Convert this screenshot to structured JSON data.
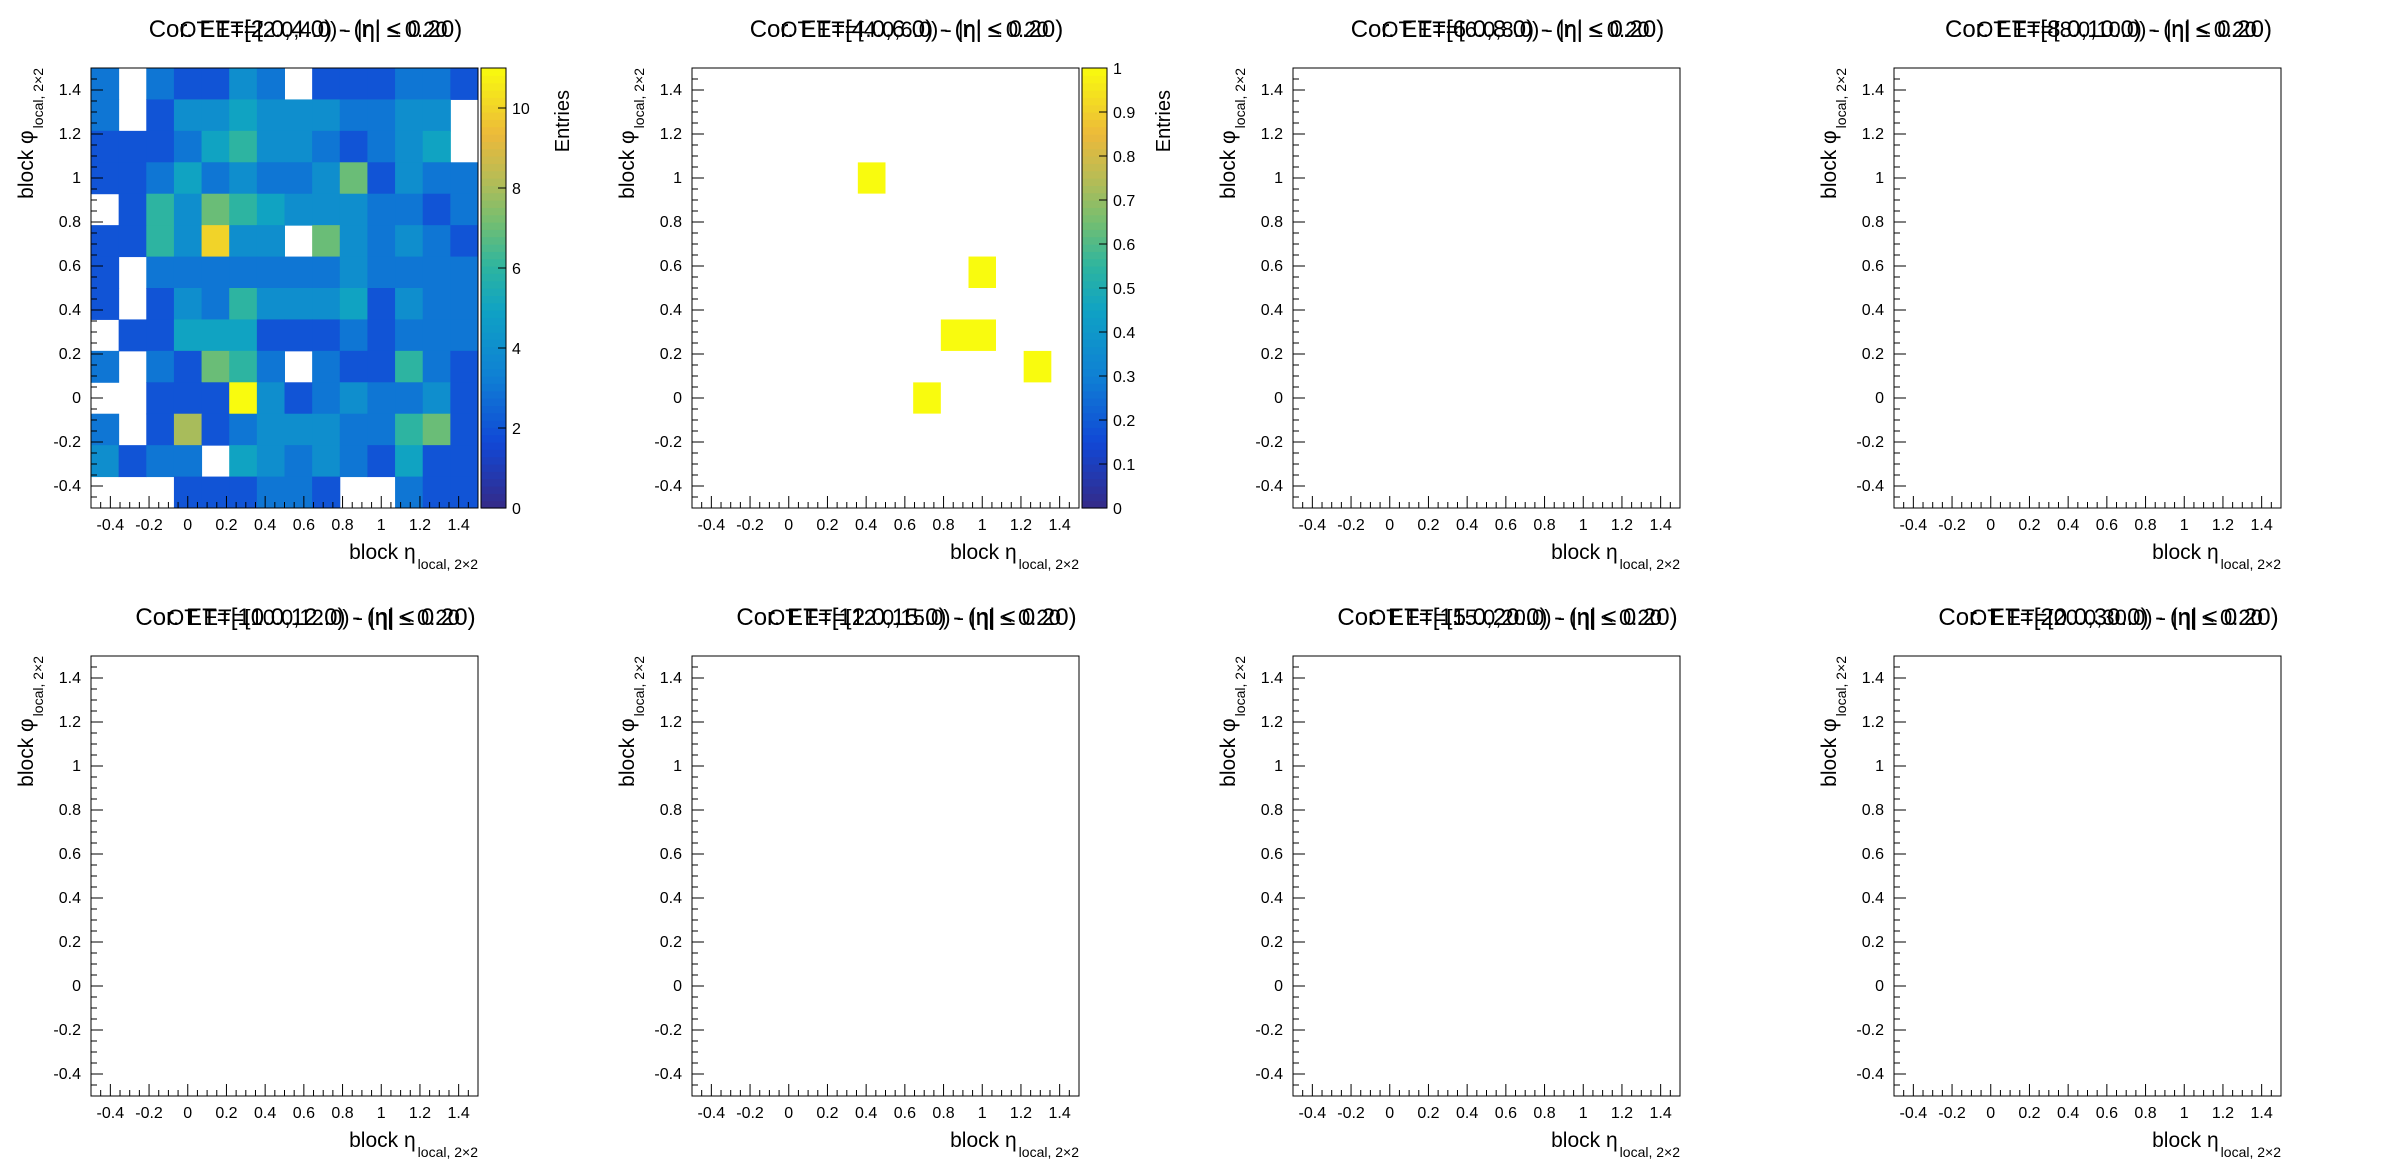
{
  "panels": [
    {
      "title_a": "Cor. ET=[2.0,4.0) - (η| ≤ 0.20)",
      "title_b": "OT ET=[2.0,4.0) - |η| ≤ 0.20",
      "xlabel": "block η",
      "xlabel_sub": "local, 2×2",
      "ylabel": "block φ",
      "ylabel_sub": "local, 2×2",
      "has_colorbar": true,
      "colorbar_max": 11,
      "colorbar_ticks": [
        "0",
        "2",
        "4",
        "6",
        "8",
        "10"
      ],
      "colorbar_title": "Entries"
    },
    {
      "title_a": "Cor. ET=[4.0,6.0) - (η| ≤ 0.20)",
      "title_b": "OT ET=[4.0,6.0) - |η| ≤ 0.20",
      "xlabel": "block η",
      "xlabel_sub": "local, 2×2",
      "ylabel": "block φ",
      "ylabel_sub": "local, 2×2",
      "has_colorbar": true,
      "colorbar_max": 1,
      "colorbar_ticks": [
        "0",
        "0.1",
        "0.2",
        "0.3",
        "0.4",
        "0.5",
        "0.6",
        "0.7",
        "0.8",
        "0.9",
        "1"
      ],
      "colorbar_title": "Entries"
    },
    {
      "title_a": "Cor. ET=[6.0,8.0) - (η| ≤ 0.20)",
      "title_b": "OT ET=[6.0,8.0) - |η| ≤ 0.20",
      "xlabel": "block η",
      "xlabel_sub": "local, 2×2",
      "ylabel": "block φ",
      "ylabel_sub": "local, 2×2",
      "has_colorbar": false
    },
    {
      "title_a": "Cor. ET=[8.0,10.0) - (η| ≤ 0.20)",
      "title_b": "OT ET=[8.0,10.0) - |η| ≤ 0.20",
      "xlabel": "block η",
      "xlabel_sub": "local, 2×2",
      "ylabel": "block φ",
      "ylabel_sub": "local, 2×2",
      "has_colorbar": false
    },
    {
      "title_a": "Cor. ET=[10.0,12.0) - (η| ≤ 0.20)",
      "title_b": "OT ET=[10.0,12.0) - |η| ≤ 0.20",
      "xlabel": "block η",
      "xlabel_sub": "local, 2×2",
      "ylabel": "block φ",
      "ylabel_sub": "local, 2×2",
      "has_colorbar": false
    },
    {
      "title_a": "Cor. ET=[12.0,15.0) - (η| ≤ 0.20)",
      "title_b": "OT ET=[12.0,15.0) - |η| ≤ 0.20",
      "xlabel": "block η",
      "xlabel_sub": "local, 2×2",
      "ylabel": "block φ",
      "ylabel_sub": "local, 2×2",
      "has_colorbar": false
    },
    {
      "title_a": "Cor. ET=[15.0,20.0) - (η| ≤ 0.20)",
      "title_b": "OT ET=[15.0,20.0) - |η| ≤ 0.20",
      "xlabel": "block η",
      "xlabel_sub": "local, 2×2",
      "ylabel": "block φ",
      "ylabel_sub": "local, 2×2",
      "has_colorbar": false
    },
    {
      "title_a": "Cor. ET=[20.0,30.0) - (η| ≤ 0.20)",
      "title_b": "OT ET=[20.0,30.0) - |η| ≤ 0.20",
      "xlabel": "block η",
      "xlabel_sub": "local, 2×2",
      "ylabel": "block φ",
      "ylabel_sub": "local, 2×2",
      "has_colorbar": false
    }
  ],
  "chart_data": [
    {
      "type": "heatmap",
      "xlim": [
        -0.5,
        1.5
      ],
      "ylim": [
        -0.5,
        1.5
      ],
      "nbins_x": 14,
      "nbins_y": 14,
      "x_ticks": [
        "-0.4",
        "-0.2",
        "0",
        "0.2",
        "0.4",
        "0.6",
        "0.8",
        "1",
        "1.2",
        "1.4"
      ],
      "y_ticks": [
        "-0.4",
        "-0.2",
        "0",
        "0.2",
        "0.4",
        "0.6",
        "0.8",
        "1",
        "1.2",
        "1.4"
      ],
      "zlim": [
        0,
        11
      ],
      "colorbar_label": "Entries",
      "values": [
        [
          3,
          0,
          3,
          2,
          2,
          4,
          3,
          0,
          2,
          2,
          2,
          3,
          3,
          2
        ],
        [
          3,
          0,
          2,
          4,
          4,
          5,
          4,
          4,
          4,
          3,
          3,
          4,
          4,
          0
        ],
        [
          2,
          2,
          2,
          3,
          5,
          6,
          4,
          4,
          3,
          2,
          3,
          4,
          5,
          0
        ],
        [
          2,
          2,
          3,
          5,
          3,
          4,
          3,
          3,
          4,
          7,
          2,
          4,
          3,
          3
        ],
        [
          0,
          2,
          6,
          4,
          7,
          6,
          5,
          4,
          4,
          4,
          3,
          3,
          2,
          3
        ],
        [
          2,
          2,
          6,
          4,
          10,
          4,
          4,
          0,
          7,
          4,
          3,
          4,
          3,
          2
        ],
        [
          2,
          0,
          3,
          3,
          3,
          3,
          3,
          3,
          3,
          4,
          3,
          3,
          3,
          3
        ],
        [
          2,
          0,
          2,
          4,
          3,
          6,
          4,
          4,
          4,
          5,
          2,
          4,
          3,
          3
        ],
        [
          0,
          2,
          2,
          5,
          5,
          5,
          2,
          2,
          2,
          3,
          2,
          3,
          3,
          3
        ],
        [
          3,
          0,
          3,
          2,
          7,
          6,
          3,
          0,
          3,
          2,
          2,
          6,
          3,
          2
        ],
        [
          0,
          0,
          2,
          2,
          2,
          11,
          4,
          2,
          3,
          4,
          3,
          3,
          4,
          2
        ],
        [
          3,
          0,
          2,
          8,
          2,
          3,
          4,
          4,
          4,
          3,
          3,
          6,
          7,
          2
        ],
        [
          4,
          2,
          3,
          3,
          0,
          5,
          4,
          3,
          4,
          3,
          2,
          5,
          2,
          2
        ],
        [
          0,
          0,
          0,
          2,
          2,
          2,
          3,
          3,
          2,
          0,
          0,
          3,
          2,
          2
        ]
      ]
    },
    {
      "type": "heatmap",
      "xlim": [
        -0.5,
        1.5
      ],
      "ylim": [
        -0.5,
        1.5
      ],
      "x_ticks": [
        "-0.4",
        "-0.2",
        "0",
        "0.2",
        "0.4",
        "0.6",
        "0.8",
        "1",
        "1.2",
        "1.4"
      ],
      "y_ticks": [
        "-0.4",
        "-0.2",
        "0",
        "0.2",
        "0.4",
        "0.6",
        "0.8",
        "1",
        "1.2",
        "1.4"
      ],
      "zlim": [
        0,
        1
      ],
      "colorbar_label": "Entries",
      "cells": [
        {
          "x0": 0.357,
          "x1": 0.5,
          "y0": 0.929,
          "y1": 1.071,
          "v": 1
        },
        {
          "x0": 0.643,
          "x1": 0.786,
          "y0": -0.071,
          "y1": 0.071,
          "v": 1
        },
        {
          "x0": 0.786,
          "x1": 1.071,
          "y0": 0.214,
          "y1": 0.357,
          "v": 1
        },
        {
          "x0": 0.929,
          "x1": 1.071,
          "y0": 0.5,
          "y1": 0.643,
          "v": 1
        },
        {
          "x0": 1.214,
          "x1": 1.357,
          "y0": 0.071,
          "y1": 0.214,
          "v": 1
        }
      ]
    },
    {
      "type": "heatmap",
      "xlim": [
        -0.5,
        1.5
      ],
      "ylim": [
        -0.5,
        1.5
      ],
      "cells": []
    },
    {
      "type": "heatmap",
      "xlim": [
        -0.5,
        1.5
      ],
      "ylim": [
        -0.5,
        1.5
      ],
      "cells": []
    },
    {
      "type": "heatmap",
      "xlim": [
        -0.5,
        1.5
      ],
      "ylim": [
        -0.5,
        1.5
      ],
      "cells": []
    },
    {
      "type": "heatmap",
      "xlim": [
        -0.5,
        1.5
      ],
      "ylim": [
        -0.5,
        1.5
      ],
      "cells": []
    },
    {
      "type": "heatmap",
      "xlim": [
        -0.5,
        1.5
      ],
      "ylim": [
        -0.5,
        1.5
      ],
      "cells": []
    },
    {
      "type": "heatmap",
      "xlim": [
        -0.5,
        1.5
      ],
      "ylim": [
        -0.5,
        1.5
      ],
      "cells": []
    }
  ]
}
